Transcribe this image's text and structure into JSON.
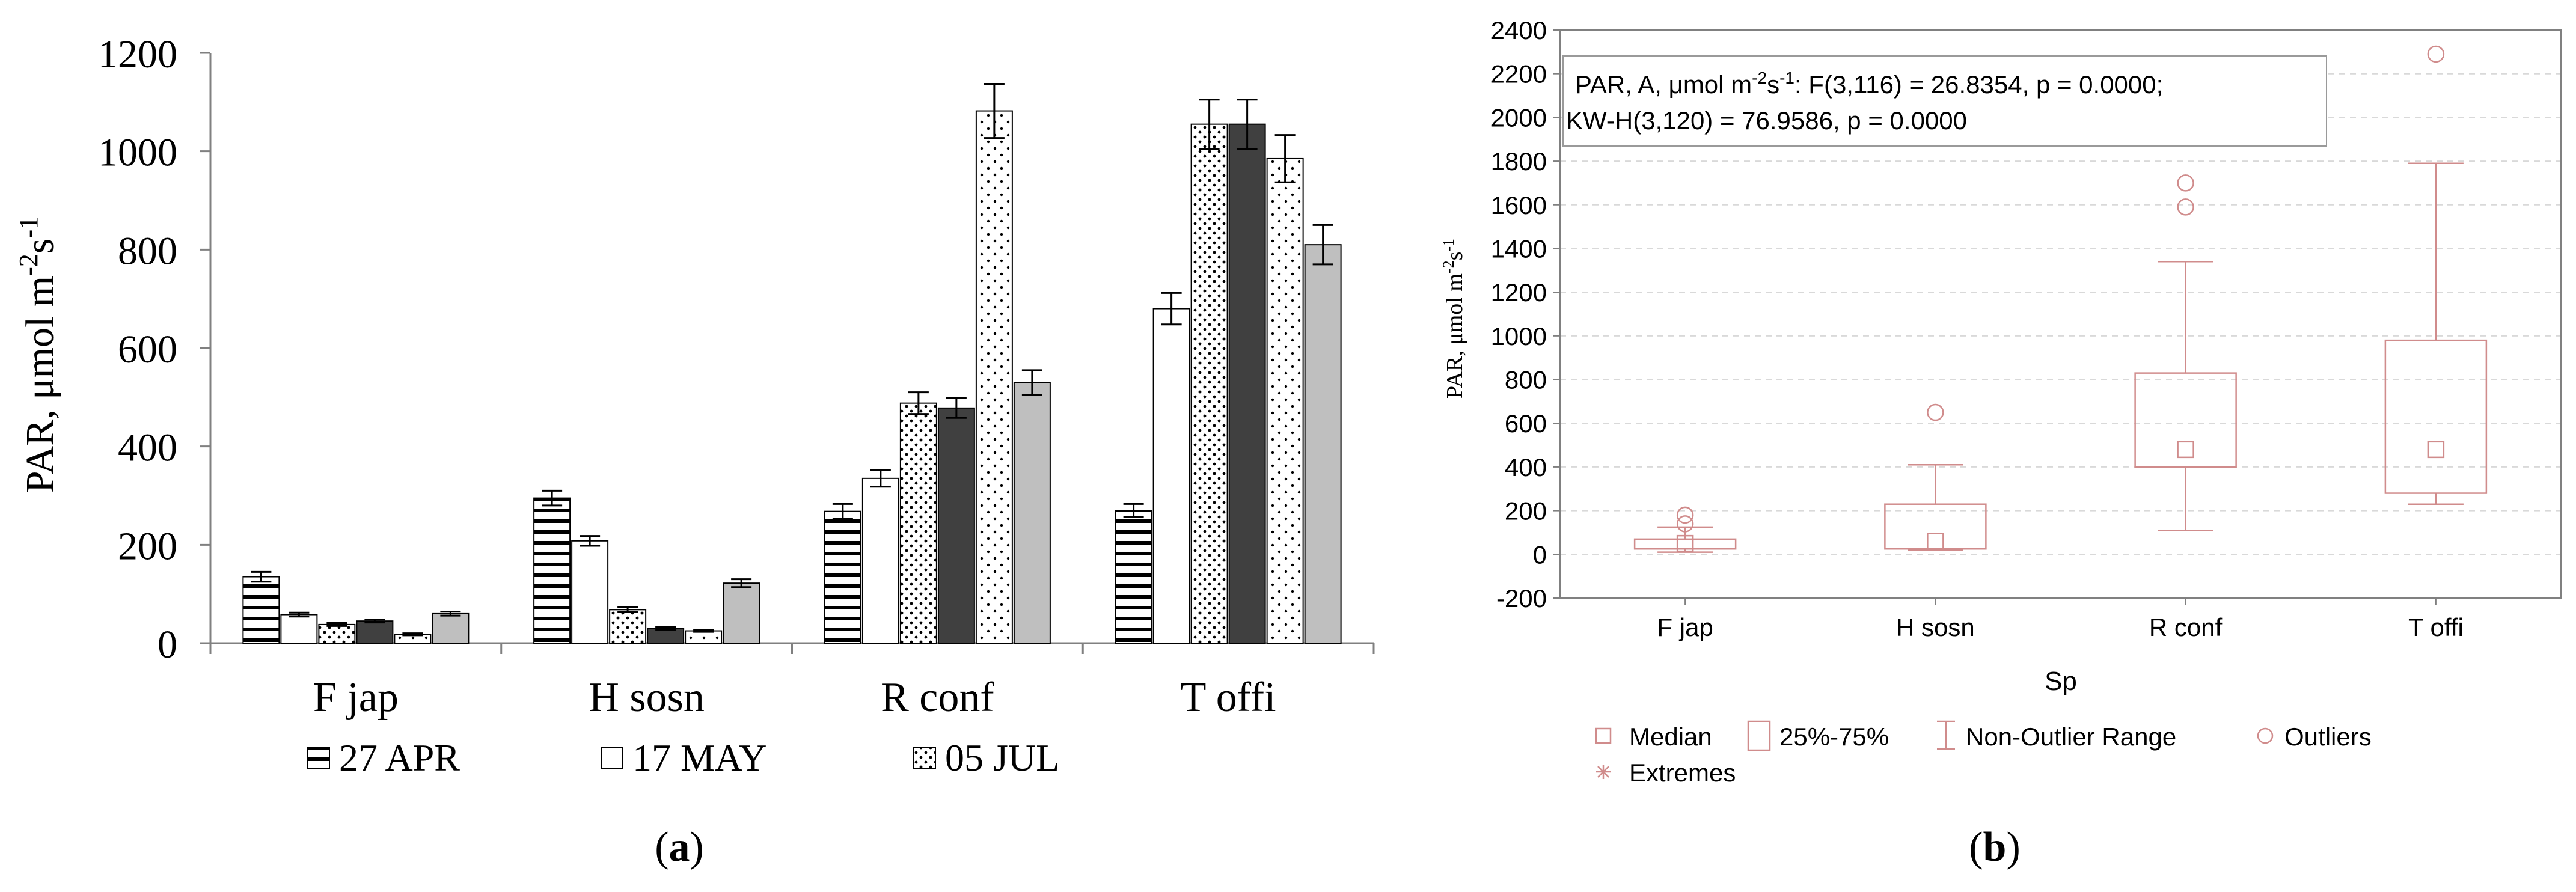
{
  "colors": {
    "bar_stroke": "#000000",
    "dark_fill": "#404040",
    "light_fill": "#bfbfbf",
    "box_red": "#d08c8c",
    "grid": "#d9d9d9",
    "axis": "#808080"
  },
  "chart_data": [
    {
      "type": "bar",
      "panel_label": "a",
      "ylabel": "PAR, μmol m",
      "ylabel_sup1": "-2",
      "ylabel_mid": "s",
      "ylabel_sup2": "-1",
      "ylim": [
        0,
        1200
      ],
      "yticks": [
        0,
        200,
        400,
        600,
        800,
        1000,
        1200
      ],
      "categories": [
        "F jap",
        "H sosn",
        "R conf",
        "T offi"
      ],
      "series": [
        {
          "name": "27 APR",
          "pattern": "hlines",
          "values": [
            135,
            295,
            268,
            270
          ],
          "errors": [
            10,
            15,
            15,
            13
          ]
        },
        {
          "name": "17 MAY",
          "pattern": "white",
          "values": [
            58,
            208,
            335,
            680
          ],
          "errors": [
            4,
            10,
            17,
            32
          ]
        },
        {
          "name": "05 JUL",
          "pattern": "dots",
          "values": [
            38,
            68,
            488,
            1055
          ],
          "errors": [
            3,
            5,
            22,
            50
          ]
        },
        {
          "name": "",
          "pattern": "dark",
          "values": [
            45,
            30,
            478,
            1055
          ],
          "errors": [
            3,
            3,
            20,
            50
          ]
        },
        {
          "name": "",
          "pattern": "dots-tall",
          "values": [
            18,
            25,
            1082,
            985
          ],
          "errors": [
            2,
            2,
            55,
            48
          ]
        },
        {
          "name": "",
          "pattern": "gray",
          "values": [
            60,
            122,
            530,
            810
          ],
          "errors": [
            4,
            8,
            25,
            40
          ]
        }
      ],
      "legend": [
        {
          "label": "27 APR",
          "pattern": "hlines"
        },
        {
          "label": "17 MAY",
          "pattern": "white"
        },
        {
          "label": "05 JUL",
          "pattern": "dots"
        }
      ]
    },
    {
      "type": "box",
      "panel_label": "b",
      "title_line1": "PAR, A, μmol m",
      "title_sup1": "-2",
      "title_mid": "s",
      "title_sup2": "-1",
      "title_rest": ":   F(3,116) = 26.8354, p = 0.0000;",
      "title_line2": "KW-H(3,120) = 76.9586, p = 0.0000",
      "xlabel": "Sp",
      "ylabel": "PAR, μmol m",
      "ylabel_sup1": "-2",
      "ylabel_mid": "s",
      "ylabel_sup2": "-1",
      "ylim": [
        -200,
        2400
      ],
      "yticks": [
        -200,
        0,
        200,
        400,
        600,
        800,
        1000,
        1200,
        1400,
        1600,
        1800,
        2000,
        2200,
        2400
      ],
      "categories": [
        "F jap",
        "H sosn",
        "R conf",
        "T offi"
      ],
      "boxes": [
        {
          "median": 50,
          "q1": 25,
          "q3": 70,
          "whisker_low": 10,
          "whisker_high": 125,
          "outliers": [
            140,
            180
          ]
        },
        {
          "median": 60,
          "q1": 25,
          "q3": 230,
          "whisker_low": 20,
          "whisker_high": 410,
          "outliers": [
            650
          ]
        },
        {
          "median": 480,
          "q1": 400,
          "q3": 830,
          "whisker_low": 110,
          "whisker_high": 1340,
          "outliers": [
            1590,
            1700
          ]
        },
        {
          "median": 480,
          "q1": 280,
          "q3": 980,
          "whisker_low": 230,
          "whisker_high": 1790,
          "outliers": [
            2290
          ]
        }
      ],
      "legend": [
        {
          "label": "Median",
          "symbol": "square"
        },
        {
          "label": "25%-75%",
          "symbol": "box"
        },
        {
          "label": "Non-Outlier Range",
          "symbol": "whisker"
        },
        {
          "label": "Outliers",
          "symbol": "circle"
        },
        {
          "label": "Extremes",
          "symbol": "star"
        }
      ]
    }
  ]
}
